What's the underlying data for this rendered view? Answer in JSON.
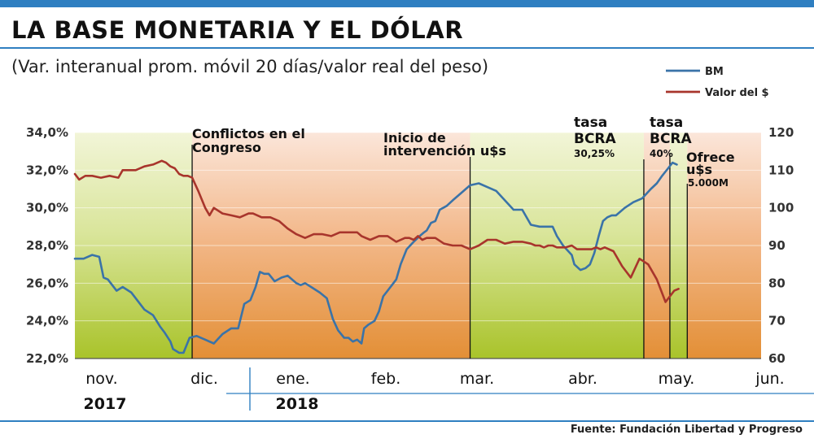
{
  "header": {
    "title": "LA BASE MONETARIA Y EL DÓLAR",
    "subtitle": "(Var. interanual prom. móvil 20 días/valor real del peso)",
    "source": "Fuente: Fundación Libertad y Progreso"
  },
  "colors": {
    "bm": "#3a73a8",
    "valor": "#a8352c",
    "accent_rule": "#2f7fc1",
    "band_green": "#b7cf3a",
    "band_orange": "#e39540"
  },
  "chart_data": {
    "type": "line",
    "title": "LA BASE MONETARIA Y EL DÓLAR",
    "left_axis": {
      "ylim": [
        22,
        34
      ],
      "ticks": [
        "22,0%",
        "24,0%",
        "26,0%",
        "28,0%",
        "30,0%",
        "32,0%",
        "34,0%"
      ]
    },
    "right_axis": {
      "ylim": [
        60,
        120
      ],
      "ticks": [
        "60",
        "70",
        "80",
        "90",
        "100",
        "110",
        "120"
      ]
    },
    "x_labels": [
      "nov.",
      "dic.",
      "ene.",
      "feb.",
      "mar.",
      "abr.",
      "may.",
      "jun."
    ],
    "years": [
      "2017",
      "2018"
    ],
    "legend": {
      "placement": "top-right",
      "entries": [
        "BM",
        "Valor del $"
      ]
    },
    "x_domain": [
      "nov. 2017",
      "jun. 2018"
    ],
    "series": [
      {
        "name": "BM",
        "axis": "left",
        "unit": "%",
        "x": [
          0,
          0.05,
          0.1,
          0.2,
          0.28,
          0.33,
          0.38,
          0.48,
          0.55,
          0.65,
          0.8,
          0.9,
          0.98,
          1.03,
          1.1,
          1.13,
          1.2,
          1.25,
          1.32,
          1.4,
          1.5,
          1.6,
          1.7,
          1.8,
          1.88,
          1.95,
          2.02,
          2.08,
          2.13,
          2.18,
          2.23,
          2.3,
          2.38,
          2.45,
          2.55,
          2.6,
          2.65,
          2.72,
          2.82,
          2.9,
          2.97,
          3.03,
          3.1,
          3.15,
          3.2,
          3.25,
          3.3,
          3.33,
          3.38,
          3.45,
          3.5,
          3.55,
          3.6,
          3.65,
          3.7,
          3.75,
          3.82,
          3.9,
          3.97,
          4.02,
          4.05,
          4.1,
          4.15,
          4.2,
          4.28,
          4.35,
          4.45,
          4.55,
          4.65,
          4.75,
          4.85,
          4.95,
          5.05,
          5.15,
          5.25,
          5.35,
          5.42,
          5.5,
          5.55,
          5.62,
          5.72,
          5.75,
          5.82,
          5.88,
          5.93,
          5.98,
          6.03,
          6.08,
          6.13,
          6.18,
          6.23,
          6.33,
          6.43,
          6.53,
          6.63,
          6.7,
          6.76,
          6.83,
          6.88,
          6.93
        ],
        "values": [
          27.3,
          27.3,
          27.3,
          27.5,
          27.4,
          26.3,
          26.2,
          25.6,
          25.8,
          25.5,
          24.6,
          24.3,
          23.7,
          23.4,
          22.9,
          22.5,
          22.3,
          22.3,
          23.1,
          23.2,
          23.0,
          22.8,
          23.3,
          23.6,
          23.6,
          24.9,
          25.1,
          25.8,
          26.6,
          26.5,
          26.5,
          26.1,
          26.3,
          26.4,
          26.0,
          25.9,
          26.0,
          25.8,
          25.5,
          25.2,
          24.1,
          23.5,
          23.1,
          23.1,
          22.9,
          23.0,
          22.8,
          23.6,
          23.8,
          24.0,
          24.5,
          25.3,
          25.6,
          25.9,
          26.2,
          27.0,
          27.8,
          28.2,
          28.5,
          28.7,
          28.8,
          29.2,
          29.3,
          29.9,
          30.1,
          30.4,
          30.8,
          31.2,
          31.3,
          31.1,
          30.9,
          30.4,
          29.9,
          29.9,
          29.1,
          29.0,
          29.0,
          29.0,
          28.5,
          28.0,
          27.5,
          27.0,
          26.7,
          26.8,
          27.0,
          27.6,
          28.5,
          29.3,
          29.5,
          29.6,
          29.6,
          30.0,
          30.3,
          30.5,
          31.0,
          31.3,
          31.7,
          32.1,
          32.4,
          32.3
        ]
      },
      {
        "name": "Valor del $",
        "axis": "right",
        "unit": "index",
        "x": [
          0,
          0.05,
          0.12,
          0.2,
          0.3,
          0.4,
          0.5,
          0.55,
          0.6,
          0.7,
          0.8,
          0.9,
          1.0,
          1.05,
          1.1,
          1.15,
          1.2,
          1.25,
          1.3,
          1.35,
          1.42,
          1.5,
          1.55,
          1.6,
          1.7,
          1.8,
          1.9,
          2.0,
          2.05,
          2.15,
          2.25,
          2.35,
          2.45,
          2.55,
          2.65,
          2.75,
          2.85,
          2.95,
          3.05,
          3.15,
          3.2,
          3.25,
          3.3,
          3.4,
          3.5,
          3.6,
          3.7,
          3.8,
          3.85,
          3.9,
          3.95,
          4.0,
          4.05,
          4.1,
          4.15,
          4.25,
          4.35,
          4.45,
          4.55,
          4.65,
          4.75,
          4.85,
          4.95,
          5.05,
          5.15,
          5.25,
          5.3,
          5.35,
          5.4,
          5.45,
          5.5,
          5.55,
          5.6,
          5.65,
          5.72,
          5.78,
          5.85,
          5.9,
          5.95,
          6.0,
          6.05,
          6.1,
          6.2,
          6.3,
          6.4,
          6.5,
          6.6,
          6.7,
          6.8,
          6.9,
          6.95
        ],
        "values": [
          109,
          107.5,
          108.5,
          108.5,
          108,
          108.5,
          108,
          110,
          110,
          110,
          111,
          111.5,
          112.5,
          112,
          111,
          110.5,
          109,
          108.5,
          108.5,
          108,
          104.5,
          100,
          98,
          100,
          98.5,
          98,
          97.5,
          98.5,
          98.5,
          97.5,
          97.5,
          96.5,
          94.5,
          93,
          92,
          93,
          93,
          92.5,
          93.5,
          93.5,
          93.5,
          93.5,
          92.5,
          91.5,
          92.5,
          92.5,
          91,
          92,
          92,
          91.5,
          92.5,
          91.5,
          92,
          92,
          92,
          90.5,
          90,
          90,
          89,
          90,
          91.5,
          91.5,
          90.5,
          91,
          91,
          90.5,
          90,
          90,
          89.5,
          90,
          90,
          89.5,
          89.5,
          89.5,
          90,
          89,
          89,
          89,
          89,
          89.5,
          89,
          89.5,
          88.5,
          84.5,
          81.5,
          86.5,
          85,
          81,
          75,
          78,
          78.5
        ]
      }
    ],
    "annotations": [
      {
        "x": 1.35,
        "lines": [
          "Conflictos en el",
          "Congreso"
        ]
      },
      {
        "x": 4.55,
        "lines": [
          "Inicio de",
          "intervención u$s"
        ]
      },
      {
        "x": 6.55,
        "lines": [
          "tasa",
          "BCRA"
        ],
        "sub": "30,25%"
      },
      {
        "x": 6.85,
        "lines": [
          "tasa",
          "BCRA"
        ],
        "sub": "40%"
      },
      {
        "x": 7.05,
        "lines": [
          "Ofrece",
          "u$s"
        ],
        "sub": "5.000M"
      }
    ],
    "bands": [
      {
        "from": 0.0,
        "to": 1.35,
        "color": "green"
      },
      {
        "from": 1.35,
        "to": 4.55,
        "color": "orange"
      },
      {
        "from": 4.55,
        "to": 6.55,
        "color": "green"
      },
      {
        "from": 6.55,
        "to": 6.85,
        "color": "orange"
      },
      {
        "from": 6.85,
        "to": 7.05,
        "color": "green"
      },
      {
        "from": 7.05,
        "to": 7.9,
        "color": "orange"
      }
    ]
  }
}
